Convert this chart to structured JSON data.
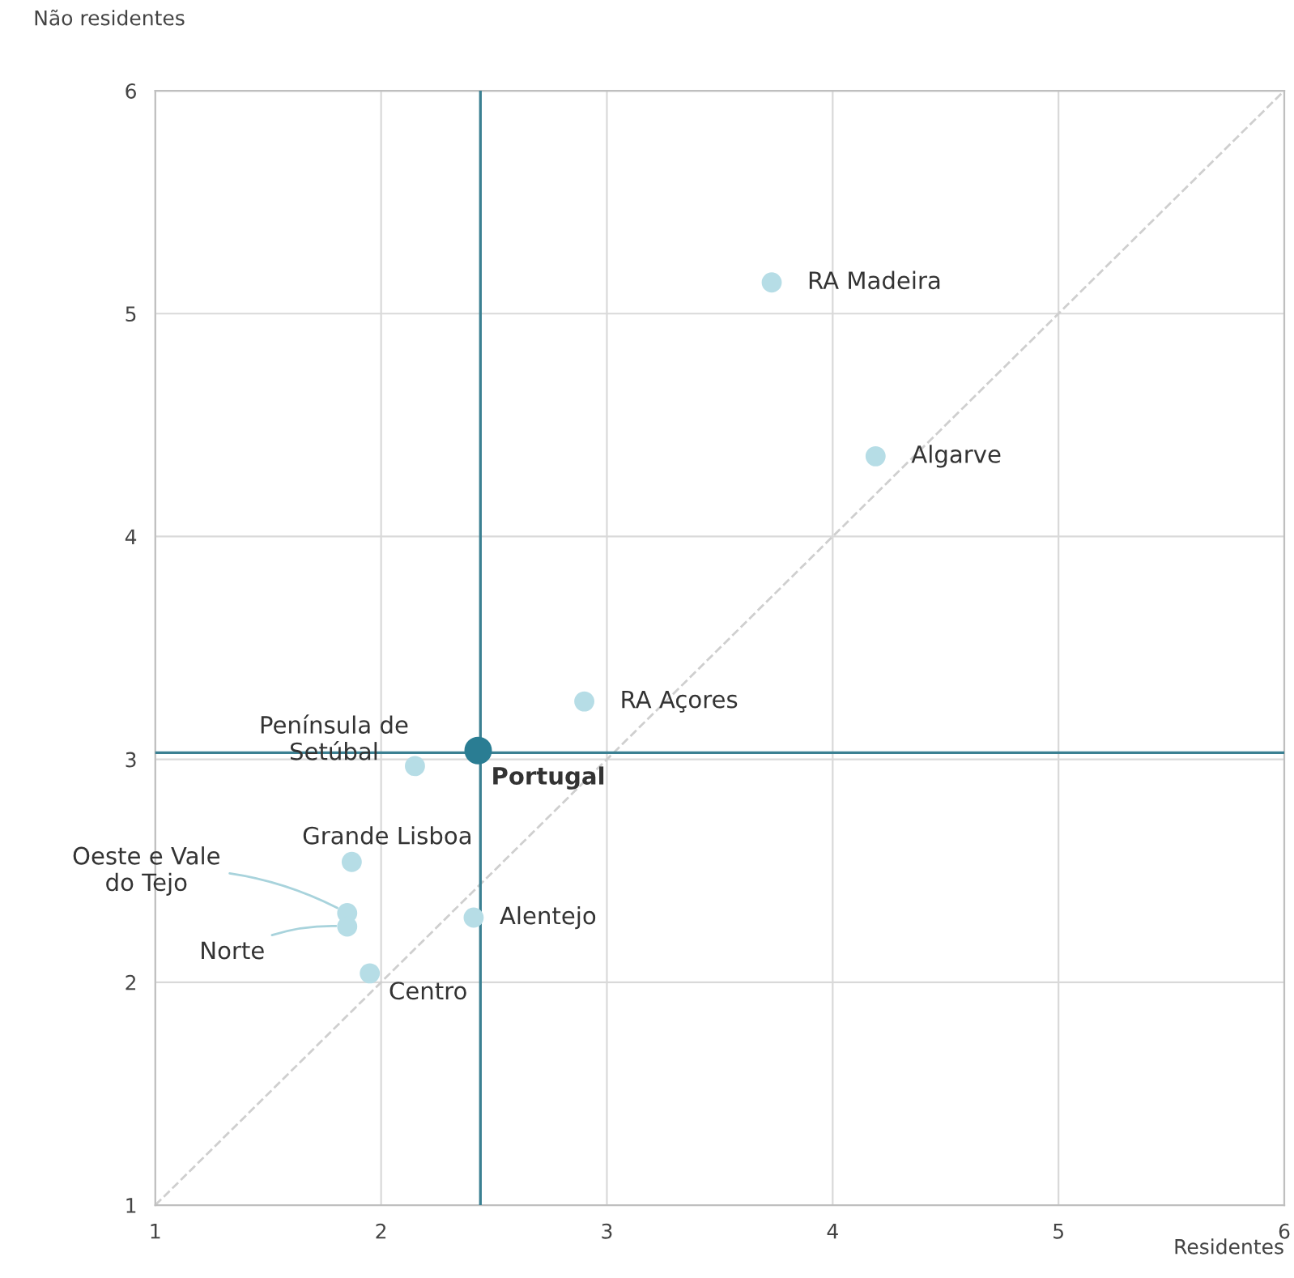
{
  "chart_data": {
    "type": "scatter",
    "xlabel": "Residentes",
    "ylabel": "Não residentes",
    "xlim": [
      1,
      6
    ],
    "ylim": [
      1,
      6
    ],
    "xticks": [
      1,
      2,
      3,
      4,
      5,
      6
    ],
    "yticks": [
      1,
      2,
      3,
      4,
      5,
      6
    ],
    "grid": true,
    "marker": "circle",
    "series": [
      {
        "type": "line",
        "color": "#cfcfcf",
        "line_style": "dashed",
        "marker": "none",
        "x": [
          1,
          6
        ],
        "values": [
          1,
          6
        ]
      },
      {
        "color": "#b6dde6",
        "x": [
          3.73,
          4.19,
          2.9,
          2.15,
          1.87,
          1.85,
          1.85,
          2.41,
          1.95
        ],
        "values": [
          5.14,
          4.36,
          3.26,
          2.97,
          2.54,
          2.31,
          2.25,
          2.29,
          2.04
        ]
      },
      {
        "color": "#2a7d93",
        "x": [
          2.43
        ],
        "values": [
          3.04
        ]
      }
    ],
    "ref_lines": [
      {
        "axis": "x",
        "value": 2.44,
        "color": "#3b8092"
      },
      {
        "axis": "y",
        "value": 3.03,
        "color": "#3b8092"
      }
    ],
    "annotations": [
      {
        "text": "RA Madeira",
        "x": 3.73,
        "y": 5.14
      },
      {
        "text": "Algarve",
        "x": 4.19,
        "y": 4.36
      },
      {
        "text": "RA Açores",
        "x": 2.9,
        "y": 3.26
      },
      {
        "text": "Portugal",
        "x": 2.43,
        "y": 3.04
      },
      {
        "text": "Península de\nSetúbal",
        "x": 2.15,
        "y": 2.97
      },
      {
        "text": "Grande Lisboa",
        "x": 1.87,
        "y": 2.54
      },
      {
        "text": "Oeste e Vale\ndo Tejo",
        "x": 1.85,
        "y": 2.31
      },
      {
        "text": "Norte",
        "x": 1.85,
        "y": 2.25
      },
      {
        "text": "Alentejo",
        "x": 2.41,
        "y": 2.29
      },
      {
        "text": "Centro",
        "x": 1.95,
        "y": 2.04
      }
    ]
  }
}
